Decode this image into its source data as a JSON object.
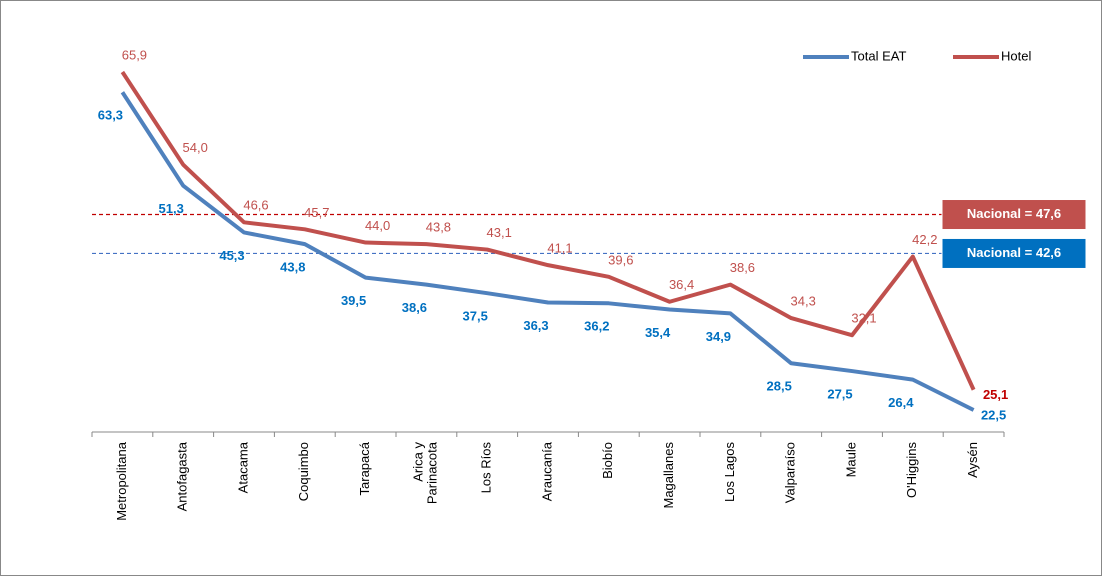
{
  "chart_data": {
    "type": "line",
    "categories": [
      "Metropolitana",
      "Antofagasta",
      "Atacama",
      "Coquimbo",
      "Tarapacá",
      "Arica y\nParinacota",
      "Los Ríos",
      "Araucanía",
      "Biobío",
      "Magallanes",
      "Los Lagos",
      "Valparaíso",
      "Maule",
      "O'Higgins",
      "Aysén"
    ],
    "series": [
      {
        "name": "Total EAT",
        "color": "#4f81bd",
        "label_color": "#0070c0",
        "values": [
          63.3,
          51.3,
          45.3,
          43.8,
          39.5,
          38.6,
          37.5,
          36.3,
          36.2,
          35.4,
          34.9,
          28.5,
          27.5,
          26.4,
          22.5
        ],
        "value_labels": [
          "63,3",
          "51,3",
          "45,3",
          "43,8",
          "39,5",
          "38,6",
          "37,5",
          "36,3",
          "36,2",
          "35,4",
          "34,9",
          "28,5",
          "27,5",
          "26,4",
          "22,5"
        ]
      },
      {
        "name": "Hotel",
        "color": "#c0504d",
        "label_color": "#c0504d",
        "values": [
          65.9,
          54.0,
          46.6,
          45.7,
          44.0,
          43.8,
          43.1,
          41.1,
          39.6,
          36.4,
          38.6,
          34.3,
          32.1,
          42.2,
          25.1
        ],
        "value_labels": [
          "65,9",
          "54,0",
          "46,6",
          "45,7",
          "44,0",
          "43,8",
          "43,1",
          "41,1",
          "39,6",
          "36,4",
          "38,6",
          "34,3",
          "32,1",
          "42,2",
          "25,1"
        ]
      }
    ],
    "reference_lines": [
      {
        "value": 47.6,
        "label": "Nacional = 47,6",
        "color": "#c00000",
        "box_color": "#c0504d"
      },
      {
        "value": 42.6,
        "label": "Nacional = 42,6",
        "color": "#4472c4",
        "box_color": "#0070c0"
      }
    ],
    "legend": "top-right"
  }
}
